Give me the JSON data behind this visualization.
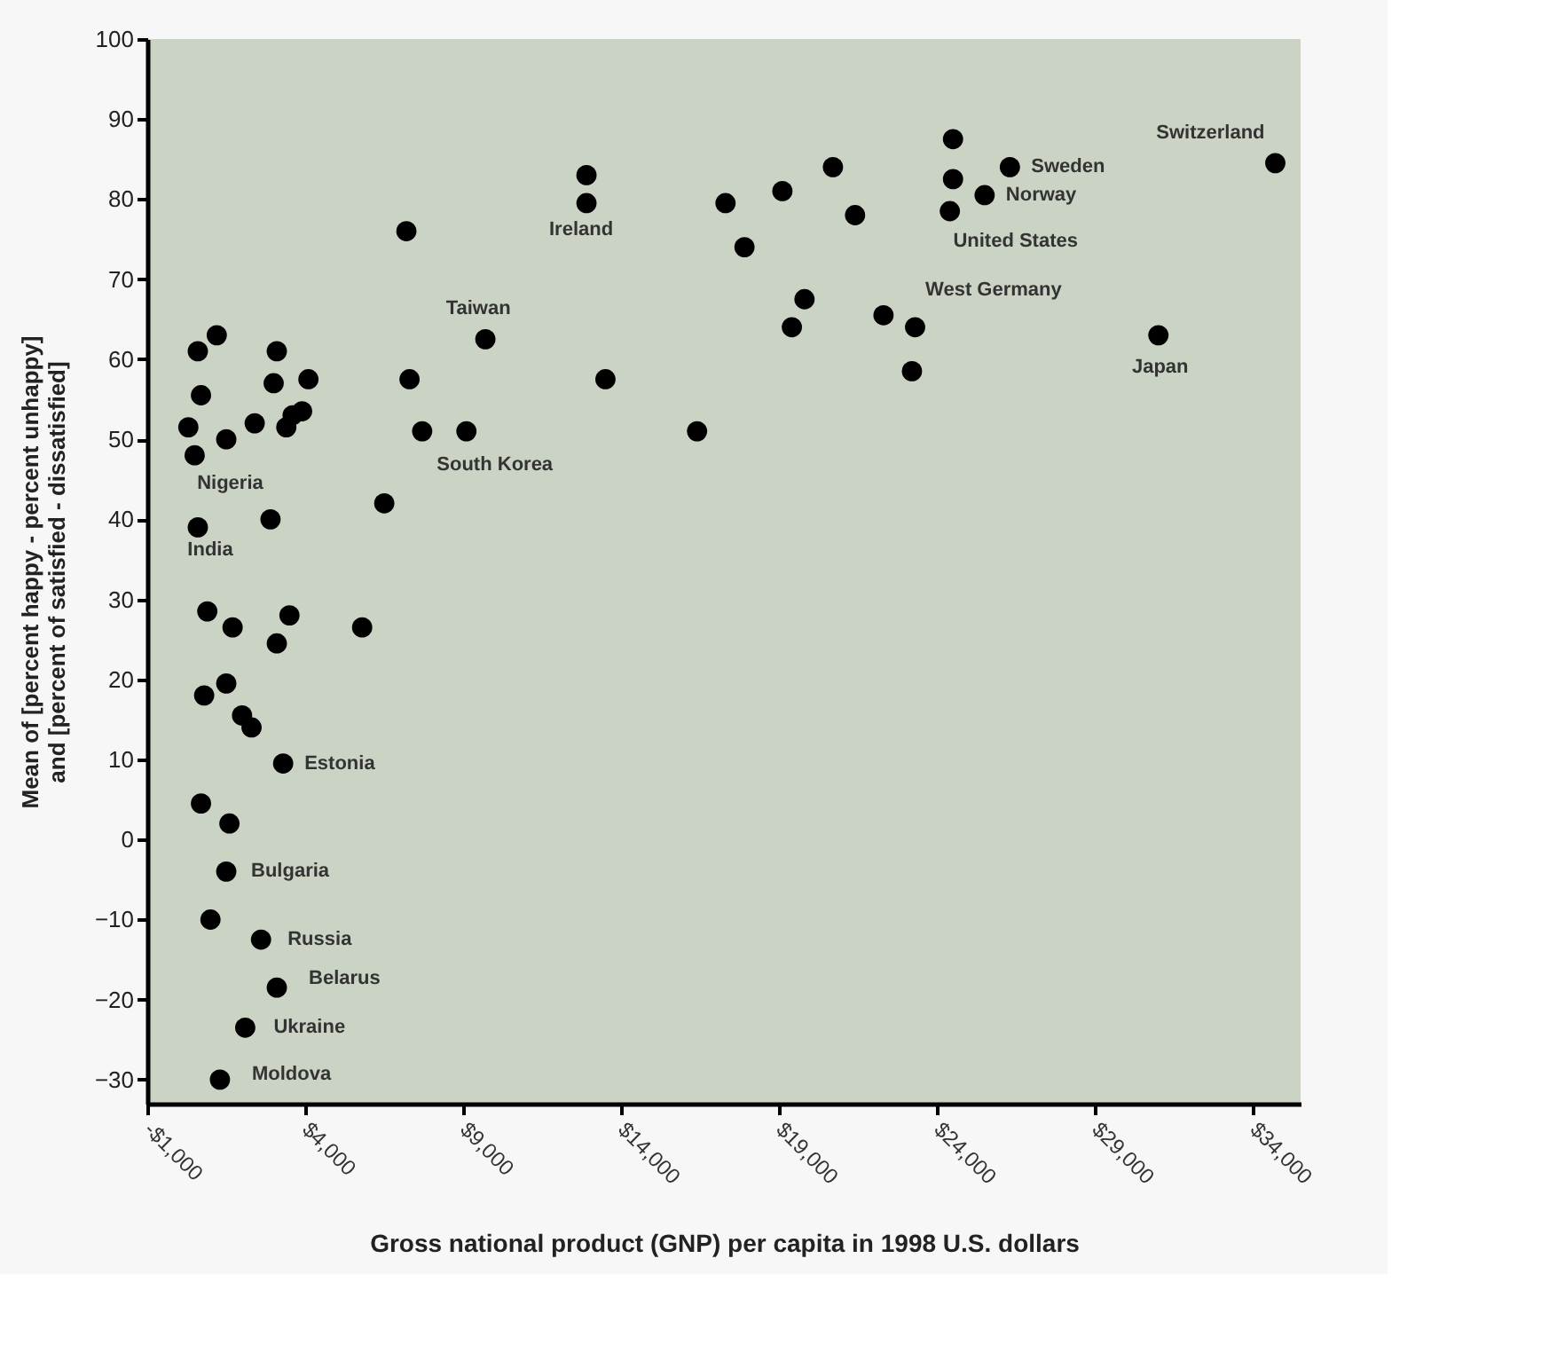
{
  "chart_data": {
    "type": "scatter",
    "xlabel": "Gross national product (GNP) per capita in 1998 U.S. dollars",
    "ylabel": "Mean of [percent happy - percent unhappy]\nand [percent of satisfied - dissatisfied]",
    "x": [
      1200,
      600,
      3100,
      700,
      3000,
      4100,
      300,
      1500,
      2400,
      3400,
      3900,
      3600,
      500,
      600,
      2900,
      7200,
      12900,
      12900,
      9700,
      7300,
      13500,
      7700,
      9100,
      6500,
      900,
      1700,
      3500,
      3100,
      5800,
      800,
      1500,
      2000,
      2300,
      3300,
      700,
      1600,
      1500,
      1000,
      2600,
      3100,
      2100,
      1300,
      17300,
      19100,
      20700,
      21400,
      17900,
      19800,
      19400,
      22300,
      23300,
      23200,
      16400,
      24500,
      24500,
      24400,
      25500,
      26300,
      31000,
      34700
    ],
    "series": [
      {
        "color": "#000000",
        "values": [
          63,
          61,
          61,
          55.5,
          57,
          57.5,
          51.5,
          50,
          52,
          51.5,
          53.5,
          53,
          48,
          39,
          40,
          76,
          83,
          79.5,
          62.5,
          57.5,
          57.5,
          51,
          51,
          42,
          28.5,
          26.5,
          28,
          24.5,
          26.5,
          18,
          19.5,
          15.5,
          14,
          9.5,
          4.5,
          2,
          -4,
          -10,
          -12.5,
          -18.5,
          -23.5,
          -30,
          79.5,
          81,
          84,
          78,
          74,
          67.5,
          64,
          65.5,
          64,
          58.5,
          51,
          87.5,
          82.5,
          78.5,
          80.5,
          84,
          63,
          84.5
        ]
      }
    ],
    "xlim": [
      -1000,
      35500
    ],
    "xticks": [
      {
        "value": -1000,
        "label": "-$1,000"
      },
      {
        "value": 4000,
        "label": "$4,000"
      },
      {
        "value": 9000,
        "label": "$9,000"
      },
      {
        "value": 14000,
        "label": "$14,000"
      },
      {
        "value": 19000,
        "label": "$19,000"
      },
      {
        "value": 24000,
        "label": "$24,000"
      },
      {
        "value": 29000,
        "label": "$29,000"
      },
      {
        "value": 34000,
        "label": "$34,000"
      }
    ],
    "ylim": [
      -33,
      100
    ],
    "yticks": [
      -30,
      -20,
      -10,
      0,
      10,
      20,
      30,
      40,
      50,
      60,
      70,
      80,
      90,
      100
    ],
    "marker": "circle",
    "grid": false,
    "legend": false,
    "annotations": [
      {
        "text": "Ireland",
        "x": 12900,
        "y": 79.5
      },
      {
        "text": "Taiwan",
        "x": 9700,
        "y": 62.5
      },
      {
        "text": "South Korea",
        "x": 9100,
        "y": 51
      },
      {
        "text": "Nigeria",
        "x": 500,
        "y": 48
      },
      {
        "text": "India",
        "x": 600,
        "y": 39
      },
      {
        "text": "Estonia",
        "x": 3300,
        "y": 9.5
      },
      {
        "text": "Bulgaria",
        "x": 1500,
        "y": -4
      },
      {
        "text": "Russia",
        "x": 2600,
        "y": -12.5
      },
      {
        "text": "Belarus",
        "x": 3100,
        "y": -18.5
      },
      {
        "text": "Ukraine",
        "x": 2100,
        "y": -23.5
      },
      {
        "text": "Moldova",
        "x": 1300,
        "y": -30
      },
      {
        "text": "West Germany",
        "x": 22300,
        "y": 65.5
      },
      {
        "text": "United States",
        "x": 24400,
        "y": 78.5
      },
      {
        "text": "Norway",
        "x": 25500,
        "y": 80.5
      },
      {
        "text": "Sweden",
        "x": 26300,
        "y": 84
      },
      {
        "text": "Switzerland",
        "x": 34700,
        "y": 84.5
      },
      {
        "text": "Japan",
        "x": 31000,
        "y": 63
      }
    ]
  }
}
